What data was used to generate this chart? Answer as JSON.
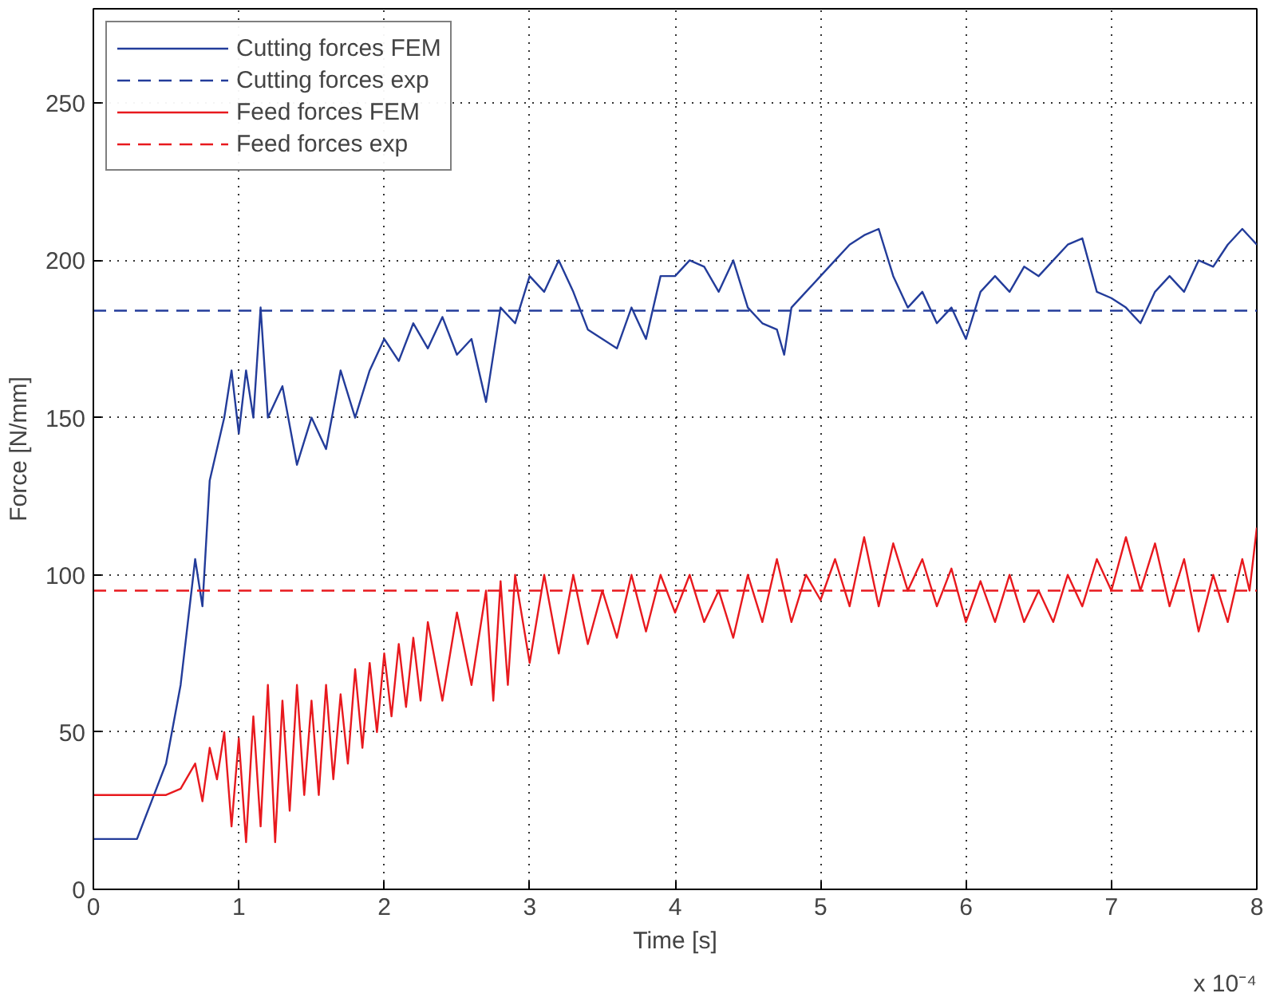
{
  "chart_data": {
    "type": "line",
    "xlabel": "Time [s]",
    "ylabel": "Force [N/mm]",
    "annotations": [
      "x 10⁻⁴"
    ],
    "xlim": [
      0,
      8
    ],
    "ylim": [
      0,
      280
    ],
    "xticks": [
      0,
      1,
      2,
      3,
      4,
      5,
      6,
      7,
      8
    ],
    "yticks": [
      0,
      50,
      100,
      150,
      200,
      250
    ],
    "grid": true,
    "legend": "top left",
    "line_style": "solid",
    "marker": "none",
    "series": [
      {
        "name": "Cutting forces FEM",
        "color": "#233c9a",
        "x": [
          0,
          0.3,
          0.4,
          0.5,
          0.6,
          0.7,
          0.75,
          0.8,
          0.9,
          0.95,
          1.0,
          1.05,
          1.1,
          1.15,
          1.2,
          1.3,
          1.4,
          1.5,
          1.6,
          1.7,
          1.8,
          1.9,
          2.0,
          2.1,
          2.2,
          2.3,
          2.4,
          2.5,
          2.6,
          2.7,
          2.8,
          2.9,
          3.0,
          3.1,
          3.2,
          3.3,
          3.4,
          3.5,
          3.6,
          3.7,
          3.8,
          3.9,
          4.0,
          4.1,
          4.2,
          4.3,
          4.4,
          4.5,
          4.6,
          4.7,
          4.75,
          4.8,
          4.9,
          5.0,
          5.1,
          5.2,
          5.3,
          5.4,
          5.5,
          5.6,
          5.7,
          5.8,
          5.9,
          6.0,
          6.1,
          6.2,
          6.3,
          6.4,
          6.5,
          6.6,
          6.7,
          6.8,
          6.9,
          7.0,
          7.1,
          7.2,
          7.3,
          7.4,
          7.5,
          7.6,
          7.7,
          7.8,
          7.9,
          8.0
        ],
        "values": [
          16,
          16,
          28,
          40,
          65,
          105,
          90,
          130,
          150,
          165,
          145,
          165,
          150,
          185,
          150,
          160,
          135,
          150,
          140,
          165,
          150,
          165,
          175,
          168,
          180,
          172,
          182,
          170,
          175,
          155,
          185,
          180,
          195,
          190,
          200,
          190,
          178,
          175,
          172,
          185,
          175,
          195,
          195,
          200,
          198,
          190,
          200,
          185,
          180,
          178,
          170,
          185,
          190,
          195,
          200,
          205,
          208,
          210,
          195,
          185,
          190,
          180,
          185,
          175,
          190,
          195,
          190,
          198,
          195,
          200,
          205,
          207,
          190,
          188,
          185,
          180,
          190,
          195,
          190,
          200,
          198,
          205,
          210,
          205
        ]
      },
      {
        "name": "Cutting forces exp",
        "color": "#233c9a",
        "line_style": "dashed",
        "x": [
          0,
          8
        ],
        "values": [
          184,
          184
        ]
      },
      {
        "name": "Feed forces FEM",
        "color": "#e8191e",
        "x": [
          0,
          0.4,
          0.5,
          0.6,
          0.7,
          0.75,
          0.8,
          0.85,
          0.9,
          0.95,
          1.0,
          1.05,
          1.1,
          1.15,
          1.2,
          1.25,
          1.3,
          1.35,
          1.4,
          1.45,
          1.5,
          1.55,
          1.6,
          1.65,
          1.7,
          1.75,
          1.8,
          1.85,
          1.9,
          1.95,
          2.0,
          2.05,
          2.1,
          2.15,
          2.2,
          2.25,
          2.3,
          2.4,
          2.5,
          2.6,
          2.7,
          2.75,
          2.8,
          2.85,
          2.9,
          3.0,
          3.1,
          3.2,
          3.3,
          3.4,
          3.5,
          3.6,
          3.7,
          3.8,
          3.9,
          4.0,
          4.1,
          4.2,
          4.3,
          4.4,
          4.5,
          4.6,
          4.7,
          4.8,
          4.9,
          5.0,
          5.1,
          5.2,
          5.3,
          5.4,
          5.5,
          5.6,
          5.7,
          5.8,
          5.9,
          6.0,
          6.1,
          6.2,
          6.3,
          6.4,
          6.5,
          6.6,
          6.7,
          6.8,
          6.9,
          7.0,
          7.1,
          7.2,
          7.3,
          7.4,
          7.5,
          7.6,
          7.7,
          7.8,
          7.9,
          7.95,
          8.0
        ],
        "values": [
          30,
          30,
          30,
          32,
          40,
          28,
          45,
          35,
          50,
          20,
          48,
          15,
          55,
          20,
          65,
          15,
          60,
          25,
          65,
          30,
          60,
          30,
          65,
          35,
          62,
          40,
          70,
          45,
          72,
          50,
          75,
          55,
          78,
          58,
          80,
          60,
          85,
          60,
          88,
          65,
          95,
          60,
          98,
          65,
          100,
          72,
          100,
          75,
          100,
          78,
          95,
          80,
          100,
          82,
          100,
          88,
          100,
          85,
          95,
          80,
          100,
          85,
          105,
          85,
          100,
          92,
          105,
          90,
          112,
          90,
          110,
          95,
          105,
          90,
          102,
          85,
          98,
          85,
          100,
          85,
          95,
          85,
          100,
          90,
          105,
          95,
          112,
          95,
          110,
          90,
          105,
          82,
          100,
          85,
          105,
          95,
          115
        ]
      },
      {
        "name": "Feed forces exp",
        "color": "#e8191e",
        "line_style": "dashed",
        "x": [
          0,
          8
        ],
        "values": [
          95,
          95
        ]
      }
    ]
  }
}
